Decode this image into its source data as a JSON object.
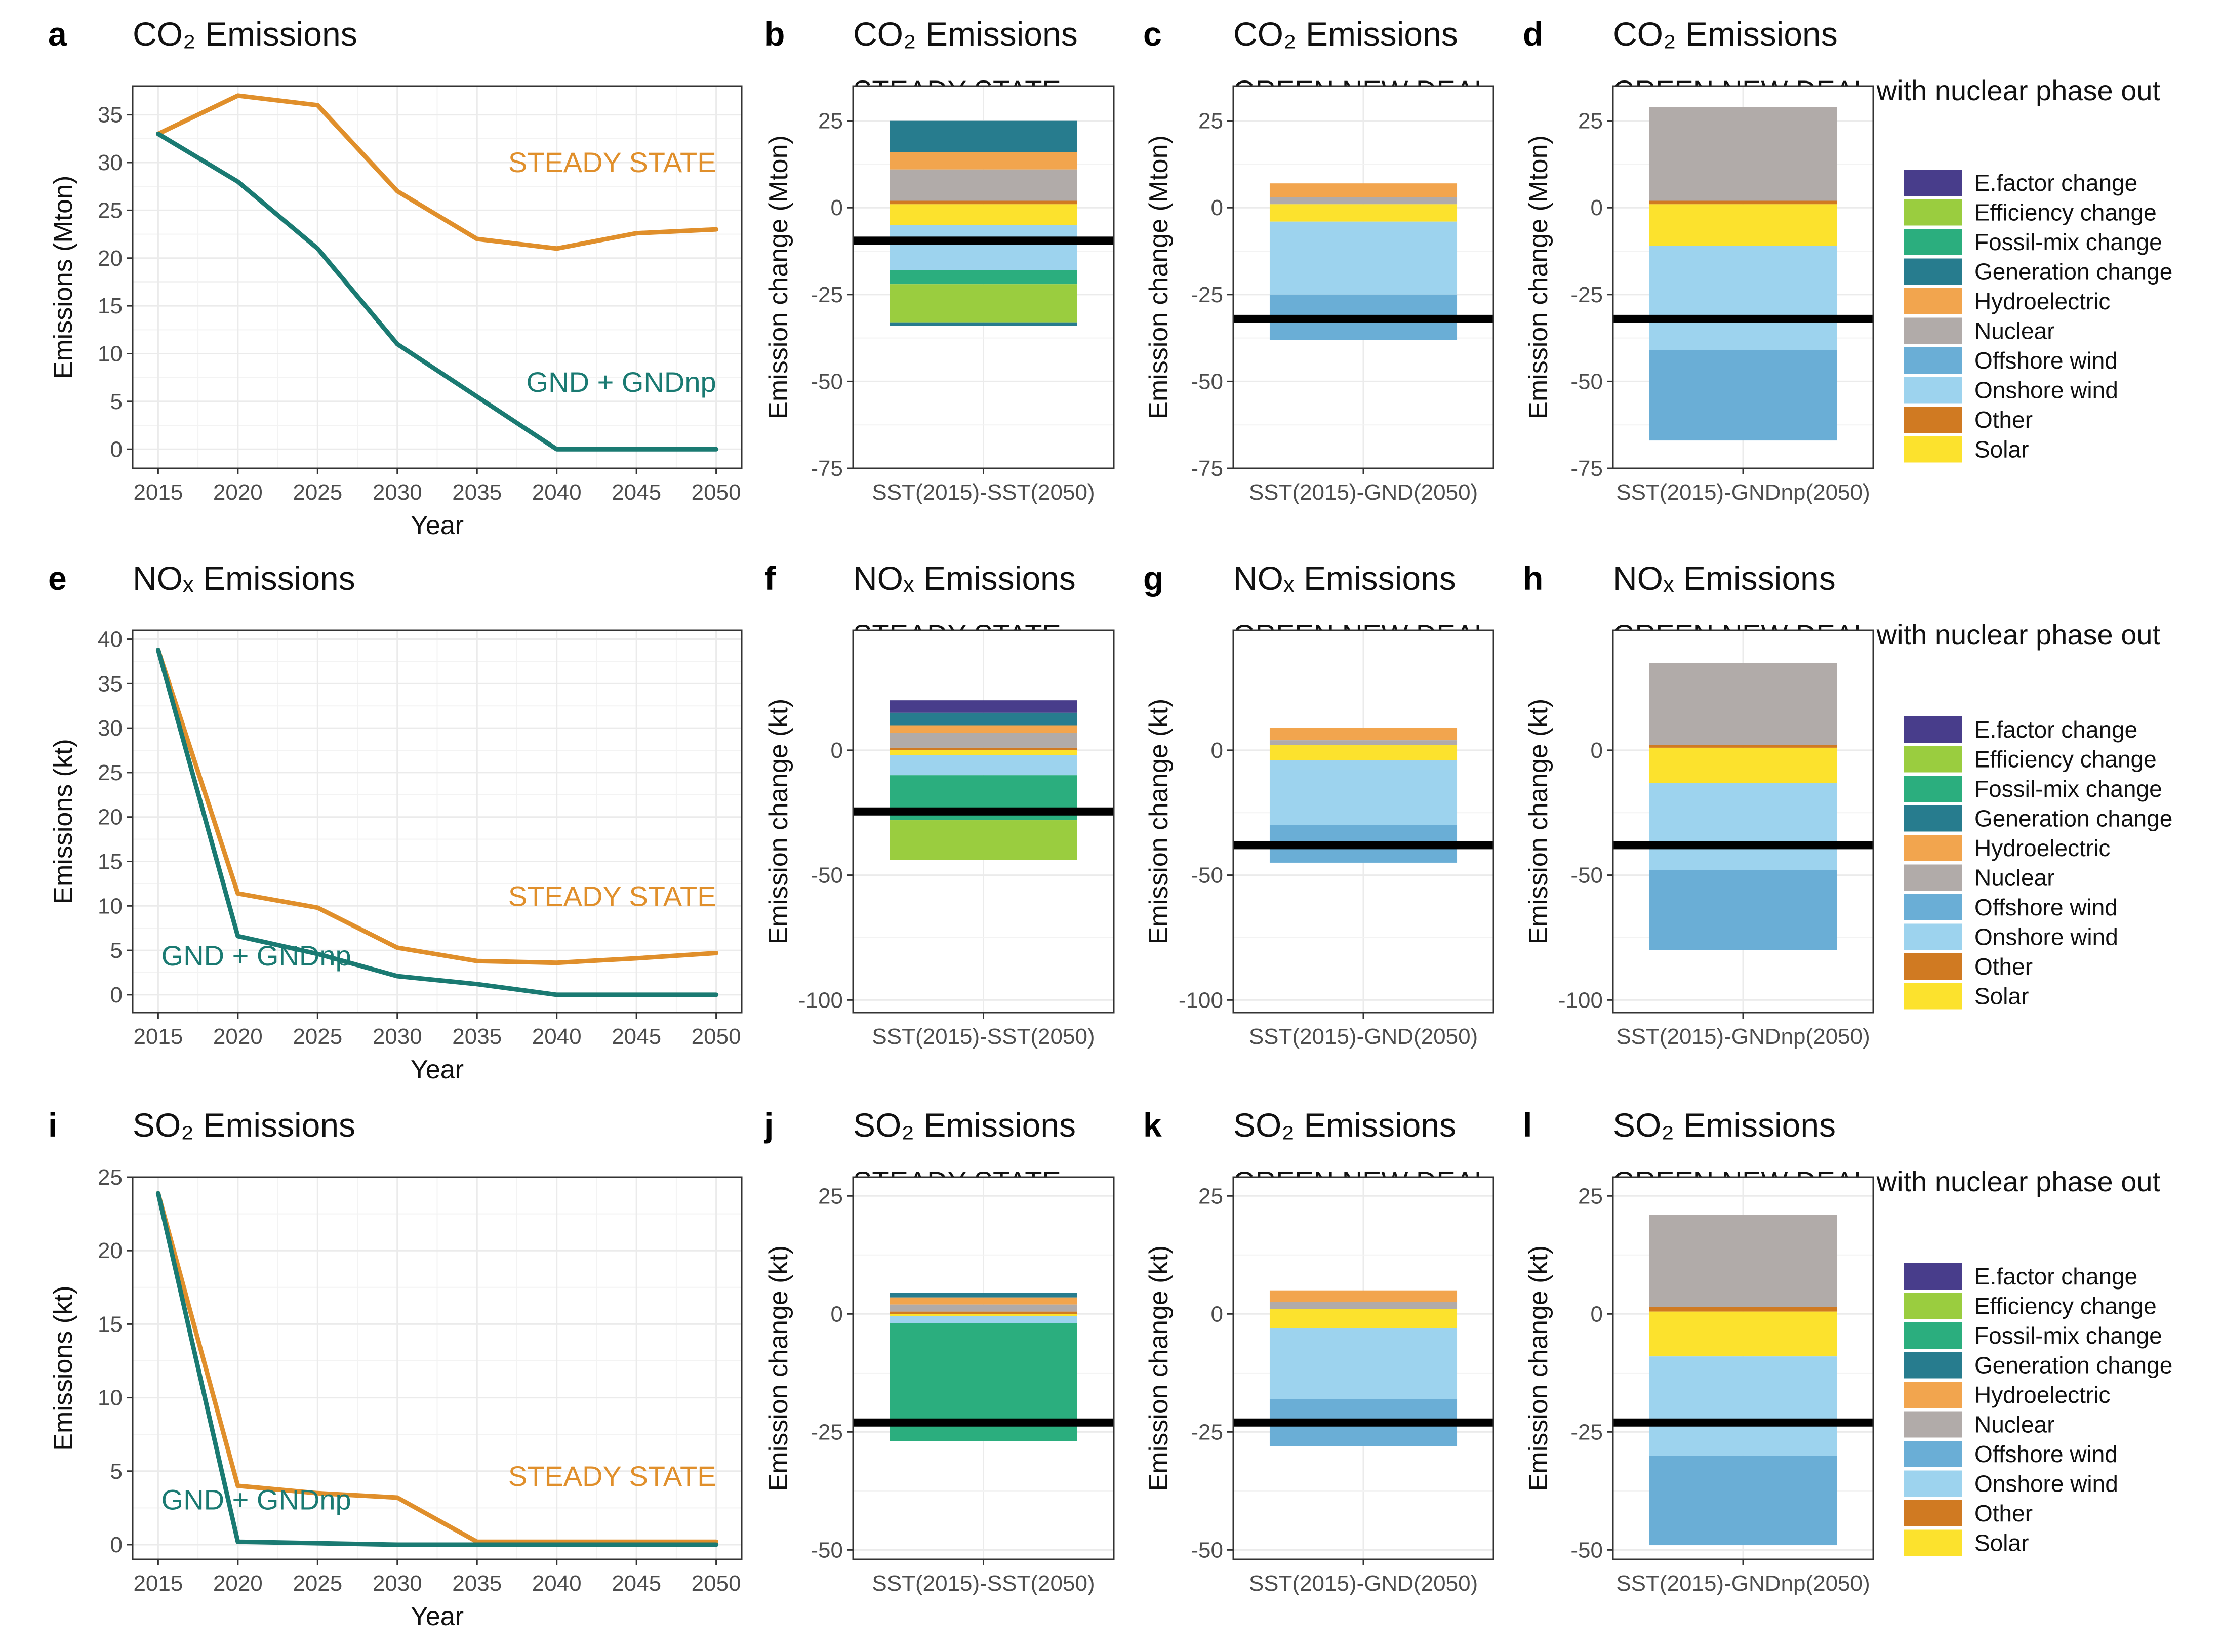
{
  "colors": {
    "steady": "#E08F2B",
    "gnd": "#1A7A72",
    "grid": "#EBEBEB",
    "axis_text": "#4D4D4D",
    "net_line": "#000000"
  },
  "legend": [
    {
      "key": "efactor",
      "label": "E.factor change",
      "color": "#483D8B"
    },
    {
      "key": "efficiency",
      "label": "Efficiency change",
      "color": "#9ACD3F"
    },
    {
      "key": "fossil",
      "label": "Fossil-mix change",
      "color": "#2BAE7E"
    },
    {
      "key": "generation",
      "label": "Generation change",
      "color": "#277C8E"
    },
    {
      "key": "hydro",
      "label": "Hydroelectric",
      "color": "#F2A54E"
    },
    {
      "key": "nuclear",
      "label": "Nuclear",
      "color": "#B1ABA9"
    },
    {
      "key": "offshore",
      "label": "Offshore wind",
      "color": "#6AAED6"
    },
    {
      "key": "onshore",
      "label": "Onshore wind",
      "color": "#9DD3EE"
    },
    {
      "key": "other",
      "label": "Other",
      "color": "#D07A22"
    },
    {
      "key": "solar",
      "label": "Solar",
      "color": "#FCE22D"
    }
  ],
  "chart_data": [
    {
      "panel": "a",
      "type": "line",
      "title": "CO₂ Emissions",
      "xlabel": "Year",
      "ylabel": "Emissions (Mton)",
      "x": [
        2015,
        2020,
        2025,
        2030,
        2035,
        2040,
        2045,
        2050
      ],
      "xticks": [
        2015,
        2020,
        2025,
        2030,
        2035,
        2040,
        2045,
        2050
      ],
      "ylim": [
        -2,
        38
      ],
      "yticks": [
        0,
        5,
        10,
        15,
        20,
        25,
        30,
        35
      ],
      "series": [
        {
          "name": "STEADY STATE",
          "key": "steady",
          "values": [
            33,
            37,
            36,
            27,
            22,
            21,
            22.6,
            23
          ]
        },
        {
          "name": "GND + GNDnp",
          "key": "gnd",
          "values": [
            33,
            28,
            21,
            11,
            5.5,
            0,
            0,
            0
          ]
        }
      ],
      "labels": [
        {
          "text": "STEADY STATE",
          "key": "steady",
          "x": 2050,
          "y": 29,
          "anchor": "end"
        },
        {
          "text": "GND + GNDnp",
          "key": "gnd",
          "x": 2050,
          "y": 6,
          "anchor": "end"
        }
      ]
    },
    {
      "panel": "b",
      "type": "bar",
      "title": "CO₂ Emissions",
      "subtitle": "STEADY STATE",
      "category": "SST(2015)-SST(2050)",
      "ylabel": "Emission change (Mton)",
      "ylim": [
        -75,
        35
      ],
      "yticks": [
        25,
        0,
        -25,
        -50,
        -75
      ],
      "net": -9.5,
      "stack": [
        {
          "key": "generation",
          "from": 16,
          "to": 25
        },
        {
          "key": "hydro",
          "from": 11,
          "to": 16
        },
        {
          "key": "nuclear",
          "from": 2,
          "to": 11
        },
        {
          "key": "other",
          "from": 1,
          "to": 2
        },
        {
          "key": "solar",
          "from": -5,
          "to": 1
        },
        {
          "key": "onshore",
          "from": -18,
          "to": -5
        },
        {
          "key": "fossil",
          "from": -22,
          "to": -18
        },
        {
          "key": "efficiency",
          "from": -33,
          "to": -22
        },
        {
          "key": "generation",
          "from": -34,
          "to": -33
        }
      ]
    },
    {
      "panel": "c",
      "type": "bar",
      "title": "CO₂ Emissions",
      "subtitle": "GREEN NEW DEAL",
      "category": "SST(2015)-GND(2050)",
      "ylabel": "Emission change (Mton)",
      "ylim": [
        -75,
        35
      ],
      "yticks": [
        25,
        0,
        -25,
        -50,
        -75
      ],
      "net": -32,
      "stack": [
        {
          "key": "hydro",
          "from": 3,
          "to": 7
        },
        {
          "key": "nuclear",
          "from": 1,
          "to": 3
        },
        {
          "key": "solar",
          "from": -4,
          "to": 1
        },
        {
          "key": "onshore",
          "from": -25,
          "to": -4
        },
        {
          "key": "offshore",
          "from": -38,
          "to": -25
        }
      ]
    },
    {
      "panel": "d",
      "type": "bar",
      "title": "CO₂ Emissions",
      "subtitle": "GREEN NEW DEAL with nuclear phase out",
      "category": "SST(2015)-GNDnp(2050)",
      "ylabel": "Emission change (Mton)",
      "ylim": [
        -75,
        35
      ],
      "yticks": [
        25,
        0,
        -25,
        -50,
        -75
      ],
      "net": -32,
      "stack": [
        {
          "key": "nuclear",
          "from": 2,
          "to": 29
        },
        {
          "key": "other",
          "from": 1,
          "to": 2
        },
        {
          "key": "solar",
          "from": -11,
          "to": 1
        },
        {
          "key": "onshore",
          "from": -41,
          "to": -11
        },
        {
          "key": "offshore",
          "from": -67,
          "to": -41
        }
      ]
    },
    {
      "panel": "e",
      "type": "line",
      "title": "NOₓ Emissions",
      "xlabel": "Year",
      "ylabel": "Emissions (kt)",
      "x": [
        2015,
        2020,
        2025,
        2030,
        2035,
        2040,
        2045,
        2050
      ],
      "xticks": [
        2015,
        2020,
        2025,
        2030,
        2035,
        2040,
        2045,
        2050
      ],
      "ylim": [
        -2,
        41
      ],
      "yticks": [
        0,
        5,
        10,
        15,
        20,
        25,
        30,
        35,
        40
      ],
      "series": [
        {
          "name": "STEADY STATE",
          "key": "steady",
          "values": [
            38.8,
            11.4,
            9.8,
            5.3,
            3.8,
            3.6,
            4.1,
            4.7
          ]
        },
        {
          "name": "GND + GNDnp",
          "key": "gnd",
          "values": [
            38.8,
            6.6,
            4.6,
            2.1,
            1.2,
            0,
            0,
            0
          ]
        }
      ],
      "labels": [
        {
          "text": "STEADY STATE",
          "key": "steady",
          "x": 2050,
          "y": 10,
          "anchor": "end"
        },
        {
          "text": "GND + GNDnp",
          "key": "gnd",
          "x": 2015.2,
          "y": 3.3,
          "anchor": "start"
        }
      ]
    },
    {
      "panel": "f",
      "type": "bar",
      "title": "NOₓ Emissions",
      "subtitle": "STEADY STATE",
      "category": "SST(2015)-SST(2050)",
      "ylabel": "Emission change (kt)",
      "ylim": [
        -105,
        48
      ],
      "yticks": [
        0,
        -50,
        -100
      ],
      "net": -24.5,
      "stack": [
        {
          "key": "efactor",
          "from": 15,
          "to": 20
        },
        {
          "key": "generation",
          "from": 10,
          "to": 15
        },
        {
          "key": "hydro",
          "from": 7,
          "to": 10
        },
        {
          "key": "nuclear",
          "from": 1,
          "to": 7
        },
        {
          "key": "other",
          "from": 0,
          "to": 1
        },
        {
          "key": "solar",
          "from": -2,
          "to": 0
        },
        {
          "key": "onshore",
          "from": -10,
          "to": -2
        },
        {
          "key": "fossil",
          "from": -28,
          "to": -10
        },
        {
          "key": "efficiency",
          "from": -44,
          "to": -28
        }
      ]
    },
    {
      "panel": "g",
      "type": "bar",
      "title": "NOₓ Emissions",
      "subtitle": "GREEN NEW DEAL",
      "category": "SST(2015)-GND(2050)",
      "ylabel": "Emission change (kt)",
      "ylim": [
        -105,
        48
      ],
      "yticks": [
        0,
        -50,
        -100
      ],
      "net": -38,
      "stack": [
        {
          "key": "hydro",
          "from": 4,
          "to": 9
        },
        {
          "key": "nuclear",
          "from": 2,
          "to": 4
        },
        {
          "key": "solar",
          "from": -4,
          "to": 2
        },
        {
          "key": "onshore",
          "from": -30,
          "to": -4
        },
        {
          "key": "offshore",
          "from": -45,
          "to": -30
        }
      ]
    },
    {
      "panel": "h",
      "type": "bar",
      "title": "NOₓ Emissions",
      "subtitle": "GREEN NEW DEAL with nuclear phase out",
      "category": "SST(2015)-GNDnp(2050)",
      "ylabel": "Emission change (kt)",
      "ylim": [
        -105,
        48
      ],
      "yticks": [
        0,
        -50,
        -100
      ],
      "net": -38,
      "stack": [
        {
          "key": "nuclear",
          "from": 2,
          "to": 35
        },
        {
          "key": "other",
          "from": 1,
          "to": 2
        },
        {
          "key": "solar",
          "from": -13,
          "to": 1
        },
        {
          "key": "onshore",
          "from": -48,
          "to": -13
        },
        {
          "key": "offshore",
          "from": -80,
          "to": -48
        }
      ]
    },
    {
      "panel": "i",
      "type": "line",
      "title": "SO₂ Emissions",
      "xlabel": "Year",
      "ylabel": "Emissions (kt)",
      "x": [
        2015,
        2020,
        2025,
        2030,
        2035,
        2040,
        2045,
        2050
      ],
      "xticks": [
        2015,
        2020,
        2025,
        2030,
        2035,
        2040,
        2045,
        2050
      ],
      "ylim": [
        -1,
        25
      ],
      "yticks": [
        0,
        5,
        10,
        15,
        20,
        25
      ],
      "series": [
        {
          "name": "STEADY STATE",
          "key": "steady",
          "values": [
            23.9,
            4,
            3.5,
            3.2,
            0.2,
            0.2,
            0.2,
            0.2
          ]
        },
        {
          "name": "GND + GNDnp",
          "key": "gnd",
          "values": [
            23.9,
            0.2,
            0.1,
            0,
            0,
            0,
            0,
            0
          ]
        }
      ],
      "labels": [
        {
          "text": "STEADY STATE",
          "key": "steady",
          "x": 2050,
          "y": 4,
          "anchor": "end"
        },
        {
          "text": "GND + GNDnp",
          "key": "gnd",
          "x": 2015.2,
          "y": 2.4,
          "anchor": "start"
        }
      ]
    },
    {
      "panel": "j",
      "type": "bar",
      "title": "SO₂ Emissions",
      "subtitle": "STEADY STATE",
      "category": "SST(2015)-SST(2050)",
      "ylabel": "Emission change (kt)",
      "ylim": [
        -52,
        29
      ],
      "yticks": [
        25,
        0,
        -25,
        -50
      ],
      "net": -23,
      "stack": [
        {
          "key": "generation",
          "from": 3.5,
          "to": 4.5
        },
        {
          "key": "hydro",
          "from": 2,
          "to": 3.5
        },
        {
          "key": "nuclear",
          "from": 0.5,
          "to": 2
        },
        {
          "key": "other",
          "from": 0,
          "to": 0.5
        },
        {
          "key": "solar",
          "from": -0.5,
          "to": 0
        },
        {
          "key": "onshore",
          "from": -2,
          "to": -0.5
        },
        {
          "key": "fossil",
          "from": -27,
          "to": -2
        }
      ]
    },
    {
      "panel": "k",
      "type": "bar",
      "title": "SO₂ Emissions",
      "subtitle": "GREEN NEW DEAL",
      "category": "SST(2015)-GND(2050)",
      "ylabel": "Emission change (kt)",
      "ylim": [
        -52,
        29
      ],
      "yticks": [
        25,
        0,
        -25,
        -50
      ],
      "net": -23,
      "stack": [
        {
          "key": "hydro",
          "from": 2.5,
          "to": 5
        },
        {
          "key": "nuclear",
          "from": 1,
          "to": 2.5
        },
        {
          "key": "solar",
          "from": -3,
          "to": 1
        },
        {
          "key": "onshore",
          "from": -18,
          "to": -3
        },
        {
          "key": "offshore",
          "from": -28,
          "to": -18
        }
      ]
    },
    {
      "panel": "l",
      "type": "bar",
      "title": "SO₂ Emissions",
      "subtitle": "GREEN NEW DEAL with nuclear phase out",
      "category": "SST(2015)-GNDnp(2050)",
      "ylabel": "Emission change (kt)",
      "ylim": [
        -52,
        29
      ],
      "yticks": [
        25,
        0,
        -25,
        -50
      ],
      "net": -23,
      "stack": [
        {
          "key": "nuclear",
          "from": 1.5,
          "to": 21
        },
        {
          "key": "other",
          "from": 0.5,
          "to": 1.5
        },
        {
          "key": "solar",
          "from": -9,
          "to": 0.5
        },
        {
          "key": "onshore",
          "from": -30,
          "to": -9
        },
        {
          "key": "offshore",
          "from": -49,
          "to": -30
        }
      ]
    }
  ]
}
